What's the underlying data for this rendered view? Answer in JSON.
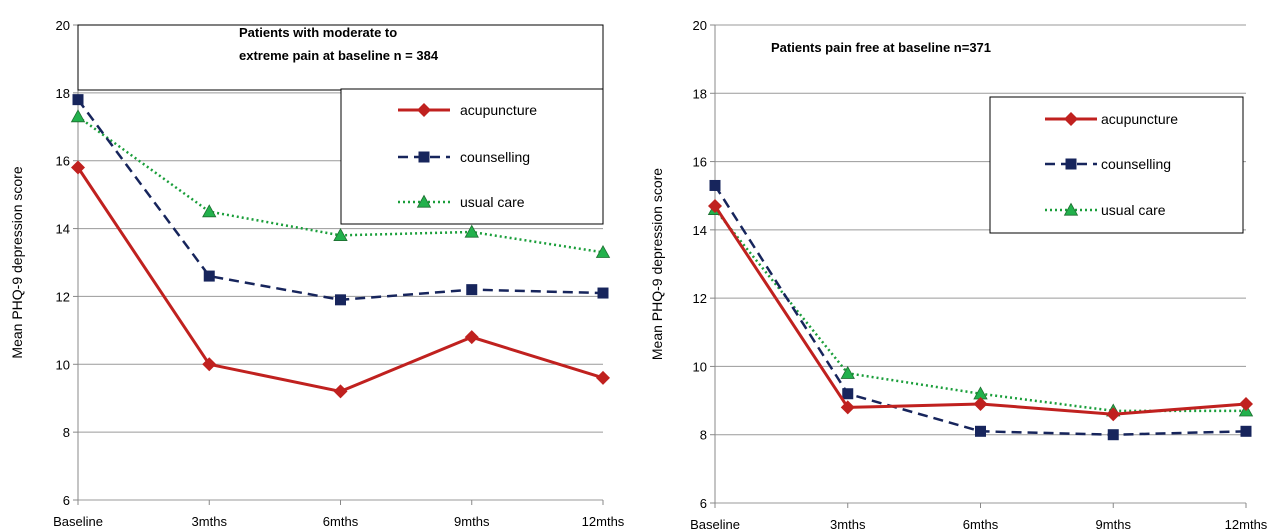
{
  "chart_data": [
    {
      "type": "line",
      "title_lines": [
        "Patients with moderate to",
        "extreme pain at baseline n = 384"
      ],
      "xlabel": "",
      "ylabel": "Mean PHQ-9 depression score",
      "categories": [
        "Baseline",
        "3mths",
        "6mths",
        "9mths",
        "12mths"
      ],
      "ylim": [
        6,
        20
      ],
      "yticks": [
        6,
        8,
        10,
        12,
        14,
        16,
        18,
        20
      ],
      "grid": true,
      "legend_position": "top-right",
      "series": [
        {
          "name": "acupuncture",
          "values": [
            15.8,
            10.0,
            9.2,
            10.8,
            9.6
          ],
          "color": "#c0211f",
          "marker": "diamond",
          "dash": "solid"
        },
        {
          "name": "counselling",
          "values": [
            17.8,
            12.6,
            11.9,
            12.2,
            12.1
          ],
          "color": "#17255c",
          "marker": "square",
          "dash": "dashed"
        },
        {
          "name": "usual care",
          "values": [
            17.3,
            14.5,
            13.8,
            13.9,
            13.3
          ],
          "color": "#1a9e3a",
          "marker": "triangle",
          "dash": "dotted"
        }
      ]
    },
    {
      "type": "line",
      "title_lines": [
        "Patients pain free at baseline n=371"
      ],
      "xlabel": "",
      "ylabel": "Mean PHQ-9 depression score",
      "categories": [
        "Baseline",
        "3mths",
        "6mths",
        "9mths",
        "12mths"
      ],
      "ylim": [
        6,
        20
      ],
      "yticks": [
        6,
        8,
        10,
        12,
        14,
        16,
        18,
        20
      ],
      "grid": true,
      "legend_position": "top-right",
      "series": [
        {
          "name": "acupuncture",
          "values": [
            14.7,
            8.8,
            8.9,
            8.6,
            8.9
          ],
          "color": "#c0211f",
          "marker": "diamond",
          "dash": "solid"
        },
        {
          "name": "counselling",
          "values": [
            15.3,
            9.2,
            8.1,
            8.0,
            8.1
          ],
          "color": "#17255c",
          "marker": "square",
          "dash": "dashed"
        },
        {
          "name": "usual care",
          "values": [
            14.6,
            9.8,
            9.2,
            8.7,
            8.7
          ],
          "color": "#1a9e3a",
          "marker": "triangle",
          "dash": "dotted"
        }
      ]
    }
  ]
}
